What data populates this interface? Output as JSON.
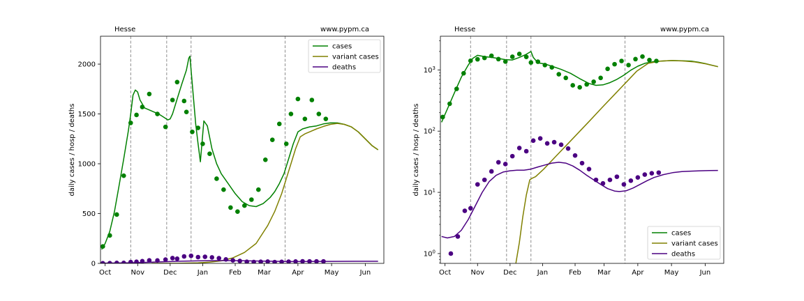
{
  "chart_data": [
    {
      "type": "line",
      "scale": "linear",
      "region_label": "Hesse",
      "site_label": "www.pypm.ca",
      "ylabel": "daily cases / hosp / deaths",
      "xlim": [
        -4,
        240
      ],
      "ylim": [
        0,
        2280
      ],
      "x_ticks": [
        {
          "label": "Oct",
          "x": 0
        },
        {
          "label": "Nov",
          "x": 28
        },
        {
          "label": "Dec",
          "x": 56
        },
        {
          "label": "Jan",
          "x": 84
        },
        {
          "label": "Feb",
          "x": 112
        },
        {
          "label": "Mar",
          "x": 137
        },
        {
          "label": "Apr",
          "x": 166
        },
        {
          "label": "May",
          "x": 195
        },
        {
          "label": "Jun",
          "x": 224
        }
      ],
      "y_ticks": [
        0,
        500,
        1000,
        1500,
        2000
      ],
      "vlines": [
        22,
        53,
        74,
        155
      ],
      "legend_position": "top-right",
      "series": [
        {
          "name": "cases",
          "kind": "line",
          "color": "#008000",
          "x": [
            -3,
            0,
            4,
            8,
            12,
            16,
            20,
            22,
            24,
            26,
            28,
            30,
            34,
            38,
            42,
            46,
            50,
            54,
            56,
            58,
            62,
            66,
            70,
            72,
            73,
            75,
            78,
            80,
            82,
            85,
            88,
            92,
            96,
            100,
            106,
            112,
            118,
            124,
            130,
            136,
            142,
            146,
            150,
            154,
            158,
            162,
            166,
            170,
            176,
            182,
            188,
            194,
            200,
            206,
            212,
            218,
            224,
            230,
            235
          ],
          "y": [
            140,
            200,
            320,
            520,
            780,
            1050,
            1330,
            1500,
            1690,
            1740,
            1720,
            1640,
            1560,
            1540,
            1520,
            1500,
            1470,
            1440,
            1450,
            1500,
            1650,
            1800,
            1940,
            2060,
            2080,
            1800,
            1400,
            1200,
            1020,
            1430,
            1380,
            1150,
            1000,
            900,
            800,
            700,
            620,
            580,
            570,
            600,
            660,
            720,
            800,
            900,
            1050,
            1200,
            1320,
            1350,
            1370,
            1380,
            1400,
            1410,
            1410,
            1395,
            1370,
            1320,
            1250,
            1180,
            1140
          ]
        },
        {
          "name": "variant cases",
          "kind": "line",
          "color": "#808000",
          "x": [
            40,
            60,
            80,
            90,
            100,
            110,
            120,
            130,
            140,
            146,
            152,
            156,
            160,
            164,
            168,
            172,
            176,
            182,
            188,
            194,
            200,
            206,
            212,
            218,
            224,
            230,
            235
          ],
          "y": [
            0,
            1,
            5,
            12,
            25,
            55,
            110,
            200,
            380,
            520,
            700,
            850,
            1000,
            1150,
            1270,
            1300,
            1320,
            1350,
            1375,
            1395,
            1405,
            1395,
            1370,
            1320,
            1250,
            1180,
            1140
          ]
        },
        {
          "name": "deaths",
          "kind": "line",
          "color": "#4b0082",
          "x": [
            -3,
            20,
            40,
            60,
            80,
            100,
            120,
            140,
            160,
            180,
            200,
            220,
            235
          ],
          "y": [
            2,
            5,
            12,
            20,
            25,
            28,
            26,
            22,
            18,
            19,
            20,
            21,
            21
          ]
        },
        {
          "name": "cases observed",
          "kind": "points",
          "color": "#008000",
          "x": [
            -2,
            4,
            10,
            16,
            22,
            27,
            32,
            38,
            45,
            52,
            58,
            62,
            68,
            70,
            75,
            80,
            84,
            90,
            96,
            102,
            108,
            114,
            120,
            126,
            132,
            138,
            144,
            150,
            156,
            160,
            166,
            172,
            178,
            184,
            190
          ],
          "y": [
            170,
            280,
            490,
            880,
            1410,
            1490,
            1570,
            1700,
            1500,
            1370,
            1640,
            1820,
            1630,
            1520,
            1320,
            1360,
            1200,
            1100,
            850,
            740,
            560,
            520,
            580,
            640,
            740,
            1040,
            1240,
            1400,
            1200,
            1500,
            1650,
            1450,
            1640,
            1500,
            1450
          ]
        },
        {
          "name": "deaths observed",
          "kind": "points",
          "color": "#4b0082",
          "x": [
            -2,
            4,
            10,
            16,
            22,
            27,
            32,
            38,
            45,
            52,
            58,
            62,
            68,
            74,
            80,
            86,
            92,
            98,
            104,
            110,
            116,
            122,
            128,
            134,
            140,
            146,
            152,
            158,
            164,
            170,
            176,
            182,
            188
          ],
          "y": [
            1,
            2,
            5,
            5,
            13,
            16,
            22,
            30,
            29,
            38,
            53,
            47,
            70,
            76,
            63,
            66,
            60,
            52,
            40,
            30,
            24,
            16,
            14,
            16,
            18,
            13,
            15,
            17,
            19,
            21,
            20,
            20,
            20
          ]
        }
      ]
    },
    {
      "type": "line",
      "scale": "log",
      "region_label": "Hesse",
      "site_label": "www.pypm.ca",
      "ylabel": "daily cases / hosp / deaths",
      "xlim": [
        -4,
        240
      ],
      "ylim_log10": [
        -0.16,
        3.55
      ],
      "x_ticks": [
        {
          "label": "Oct",
          "x": 0
        },
        {
          "label": "Nov",
          "x": 28
        },
        {
          "label": "Dec",
          "x": 56
        },
        {
          "label": "Jan",
          "x": 84
        },
        {
          "label": "Feb",
          "x": 112
        },
        {
          "label": "Mar",
          "x": 137
        },
        {
          "label": "Apr",
          "x": 166
        },
        {
          "label": "May",
          "x": 195
        },
        {
          "label": "Jun",
          "x": 224
        }
      ],
      "y_ticks": [
        {
          "base": "10",
          "exp": "0",
          "value": 1
        },
        {
          "base": "10",
          "exp": "1",
          "value": 10
        },
        {
          "base": "10",
          "exp": "2",
          "value": 100
        },
        {
          "base": "10",
          "exp": "3",
          "value": 1000
        }
      ],
      "vlines": [
        22,
        53,
        74,
        155
      ],
      "legend_position": "bottom-right",
      "series": [
        {
          "name": "cases",
          "kind": "line",
          "color": "#008000",
          "x": [
            -3,
            2,
            8,
            14,
            20,
            24,
            28,
            34,
            40,
            46,
            52,
            58,
            64,
            70,
            74,
            76,
            80,
            86,
            92,
            100,
            108,
            116,
            124,
            130,
            136,
            142,
            148,
            154,
            160,
            166,
            172,
            180,
            188,
            196,
            204,
            212,
            218,
            224,
            230,
            235
          ],
          "y": [
            140,
            230,
            420,
            760,
            1200,
            1550,
            1730,
            1650,
            1600,
            1540,
            1470,
            1450,
            1600,
            1800,
            2000,
            1600,
            1300,
            1250,
            1150,
            1020,
            880,
            720,
            600,
            560,
            570,
            620,
            700,
            820,
            990,
            1150,
            1280,
            1370,
            1400,
            1420,
            1410,
            1390,
            1340,
            1270,
            1190,
            1130
          ]
        },
        {
          "name": "variant cases",
          "kind": "line",
          "color": "#808000",
          "x": [
            61,
            64,
            67,
            70,
            73,
            75,
            78,
            85,
            95,
            105,
            115,
            125,
            135,
            145,
            155,
            165,
            175,
            185,
            195,
            205,
            215,
            225,
            235
          ],
          "y": [
            0.7,
            1.5,
            4,
            9,
            16,
            17,
            18,
            24,
            38,
            60,
            95,
            150,
            240,
            380,
            600,
            950,
            1280,
            1390,
            1420,
            1400,
            1350,
            1250,
            1130
          ]
        },
        {
          "name": "deaths",
          "kind": "line",
          "color": "#4b0082",
          "x": [
            -3,
            2,
            8,
            14,
            20,
            26,
            32,
            38,
            44,
            50,
            56,
            62,
            68,
            74,
            80,
            86,
            92,
            98,
            104,
            110,
            116,
            122,
            128,
            134,
            140,
            146,
            150,
            156,
            162,
            168,
            174,
            180,
            188,
            196,
            204,
            212,
            220,
            228,
            235
          ],
          "y": [
            1.9,
            1.8,
            1.9,
            2.4,
            3.6,
            6,
            10,
            15,
            19,
            21.5,
            22.5,
            23,
            23,
            24,
            26,
            28,
            30,
            31,
            30,
            27,
            23,
            19,
            16,
            13.5,
            11.5,
            10.5,
            10.3,
            10.6,
            11.8,
            13.5,
            15.5,
            17.5,
            19.5,
            21,
            21.8,
            22.2,
            22.5,
            22.7,
            22.8
          ]
        },
        {
          "name": "cases observed",
          "kind": "points",
          "color": "#008000",
          "x": [
            -2,
            4,
            10,
            16,
            22,
            28,
            34,
            40,
            46,
            52,
            58,
            64,
            70,
            74,
            80,
            86,
            92,
            98,
            104,
            110,
            116,
            122,
            128,
            134,
            140,
            146,
            152,
            158,
            164,
            170,
            176,
            182
          ],
          "y": [
            170,
            280,
            490,
            880,
            1410,
            1490,
            1570,
            1700,
            1500,
            1370,
            1640,
            1820,
            1630,
            1320,
            1360,
            1200,
            1100,
            850,
            740,
            560,
            520,
            580,
            640,
            740,
            1040,
            1240,
            1400,
            1200,
            1500,
            1650,
            1450,
            1400
          ]
        },
        {
          "name": "deaths observed",
          "kind": "points",
          "color": "#4b0082",
          "x": [
            5,
            11,
            17,
            22,
            28,
            34,
            40,
            46,
            52,
            58,
            64,
            70,
            76,
            82,
            88,
            94,
            100,
            106,
            112,
            118,
            124,
            130,
            136,
            142,
            148,
            154,
            160,
            166,
            172,
            178,
            184
          ],
          "y": [
            1,
            1.9,
            5,
            5.5,
            13.5,
            16,
            22,
            31,
            29,
            39,
            53,
            47,
            70,
            76,
            63,
            66,
            60,
            52,
            40,
            30,
            24,
            16,
            14,
            16,
            18,
            13.5,
            15.5,
            17.5,
            19.5,
            20.5,
            21
          ]
        }
      ]
    }
  ]
}
